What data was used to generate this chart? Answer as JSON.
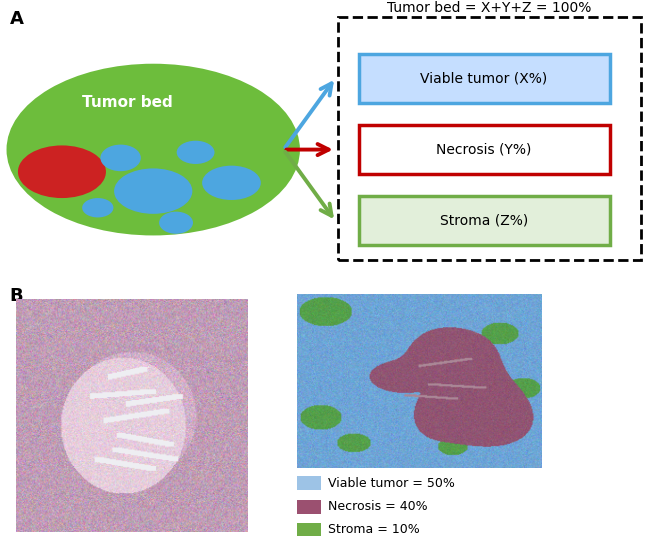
{
  "panel_A_label": "A",
  "panel_B_label": "B",
  "tumor_bed_text": "Tumor bed",
  "title_box": "Tumor bed = X+Y+Z = 100%",
  "box_labels": [
    "Viable tumor (X%)",
    "Necrosis (Y%)",
    "Stroma (Z%)"
  ],
  "box_edge_colors": [
    "#4DA6E0",
    "#C00000",
    "#70AD47"
  ],
  "box_fill_colors": [
    "#C5DEFF",
    "#FFFFFF",
    "#E2EFDA"
  ],
  "arrow_colors": [
    "#4DA6E0",
    "#C00000",
    "#70AD47"
  ],
  "ellipse_color": "#6DBD3C",
  "red_blob_color": "#CC2222",
  "blue_blob_color": "#4DA6E0",
  "legend_labels": [
    "Viable tumor = 50%",
    "Necrosis = 40%",
    "Stroma = 10%"
  ],
  "legend_colors": [
    "#9DC3E6",
    "#9B5070",
    "#70AD47"
  ],
  "bg_color": "#FFFFFF",
  "he_bg": [
    210,
    175,
    200
  ],
  "he_light": [
    230,
    205,
    220
  ],
  "col_blue": [
    110,
    165,
    215
  ],
  "col_necrosis": [
    145,
    85,
    115
  ],
  "col_green": [
    85,
    160,
    75
  ]
}
